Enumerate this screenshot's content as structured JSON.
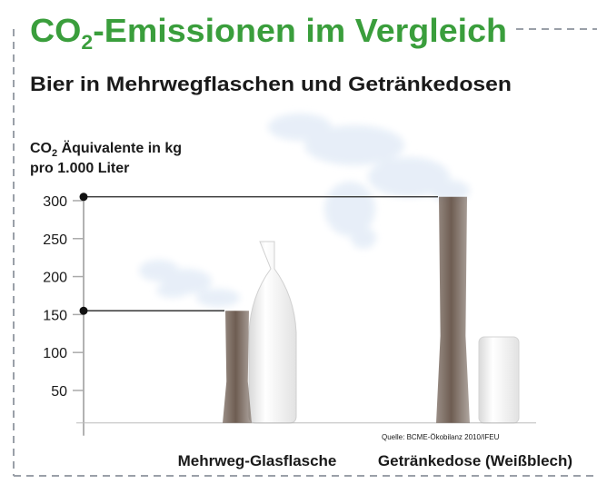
{
  "chart_data": {
    "type": "bar",
    "title": {
      "main": "CO",
      "sub": "2",
      "rest": "-Emissionen im Vergleich"
    },
    "subtitle": "Bier in Mehrwegflaschen und Getränkedosen",
    "y_label": {
      "line1_main": "CO",
      "line1_sub": "2",
      "line1_rest": " Äquivalente in kg",
      "line2": "pro 1.000 Liter"
    },
    "categories": [
      "Mehrweg-Glasflasche",
      "Getränkedose (Weißblech)"
    ],
    "values": [
      155,
      305
    ],
    "ylim": [
      0,
      310
    ],
    "yticks": [
      50,
      100,
      150,
      200,
      250,
      300
    ],
    "source": "Quelle: BCME-Ökobilanz 2010/IFEU",
    "color": "#6e5d52",
    "title_color": "#3a9e3c"
  }
}
